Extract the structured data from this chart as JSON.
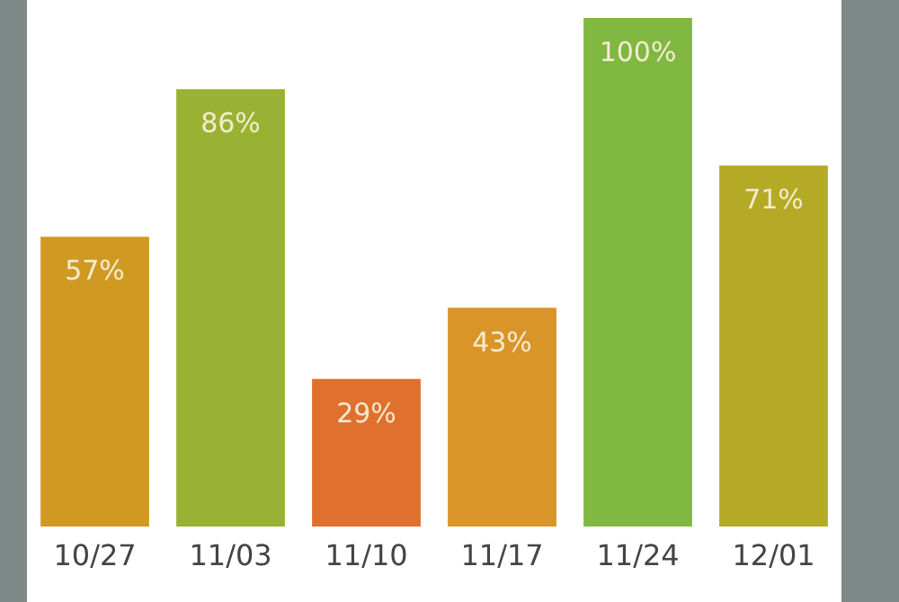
{
  "chart_data": {
    "type": "bar",
    "categories": [
      "10/27",
      "11/03",
      "11/10",
      "11/17",
      "11/24",
      "12/01"
    ],
    "values": [
      57,
      86,
      29,
      43,
      100,
      71
    ],
    "colors": [
      "#d09a22",
      "#9ab233",
      "#e0702e",
      "#d9952a",
      "#80b842",
      "#b5aa25"
    ],
    "value_labels": [
      "57%",
      "86%",
      "29%",
      "43%",
      "100%",
      "71%"
    ],
    "grid": false
  }
}
